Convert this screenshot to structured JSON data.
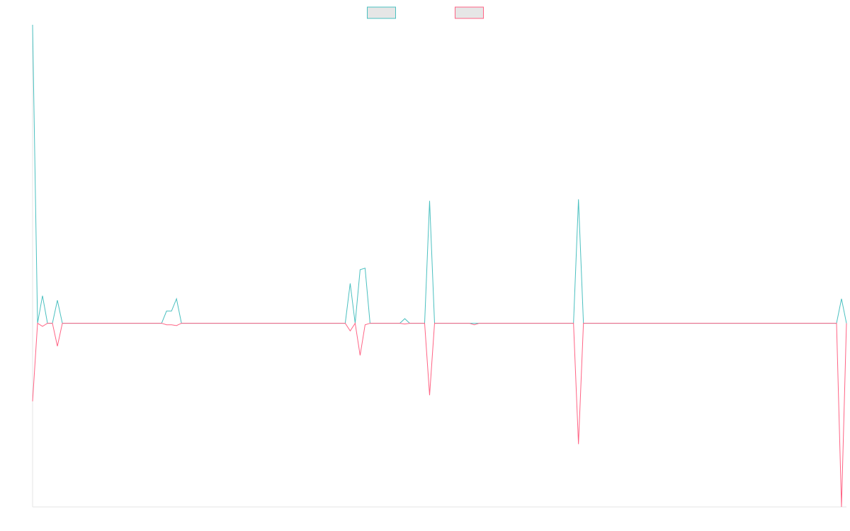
{
  "chart_data": {
    "type": "line",
    "title": "",
    "xlabel": "",
    "ylabel": "",
    "grid": false,
    "legend_position": "top",
    "ylim": [
      -12,
      19.5
    ],
    "x_count": 164,
    "series": [
      {
        "name": "",
        "color": "#4bc0c0",
        "fill": "#e6e6e6",
        "points": [
          [
            0,
            19.5
          ],
          [
            1,
            0
          ],
          [
            2,
            1.8
          ],
          [
            3,
            0
          ],
          [
            4,
            0
          ],
          [
            5,
            1.5
          ],
          [
            6,
            0
          ],
          [
            26,
            0
          ],
          [
            27,
            0.8
          ],
          [
            28,
            0.8
          ],
          [
            29,
            1.6
          ],
          [
            30,
            0
          ],
          [
            63,
            0
          ],
          [
            64,
            2.6
          ],
          [
            65,
            0
          ],
          [
            66,
            3.5
          ],
          [
            67,
            3.6
          ],
          [
            68,
            0
          ],
          [
            74,
            0
          ],
          [
            75,
            0.3
          ],
          [
            76,
            0
          ],
          [
            79,
            0
          ],
          [
            80,
            8.0
          ],
          [
            81,
            0
          ],
          [
            109,
            0
          ],
          [
            110,
            8.1
          ],
          [
            111,
            0
          ],
          [
            162,
            0
          ],
          [
            163,
            1.6
          ],
          [
            164,
            0
          ]
        ]
      },
      {
        "name": "",
        "color": "#ff6384",
        "fill": "#e6e6e6",
        "points": [
          [
            0,
            -5.1
          ],
          [
            1,
            0
          ],
          [
            2,
            -0.2
          ],
          [
            3,
            0
          ],
          [
            4,
            0
          ],
          [
            5,
            -1.5
          ],
          [
            6,
            0
          ],
          [
            26,
            0
          ],
          [
            27,
            -0.1
          ],
          [
            28,
            -0.1
          ],
          [
            29,
            -0.15
          ],
          [
            30,
            0
          ],
          [
            63,
            0
          ],
          [
            64,
            -0.5
          ],
          [
            65,
            0
          ],
          [
            66,
            -2.1
          ],
          [
            67,
            -0.1
          ],
          [
            68,
            0
          ],
          [
            74,
            0
          ],
          [
            75,
            -0.05
          ],
          [
            76,
            0
          ],
          [
            79,
            0
          ],
          [
            80,
            -4.7
          ],
          [
            81,
            0
          ],
          [
            88,
            0
          ],
          [
            89,
            -0.1
          ],
          [
            90,
            0
          ],
          [
            109,
            0
          ],
          [
            110,
            -7.9
          ],
          [
            111,
            0
          ],
          [
            162,
            0
          ],
          [
            163,
            -12.0
          ],
          [
            164,
            0
          ]
        ]
      }
    ]
  }
}
